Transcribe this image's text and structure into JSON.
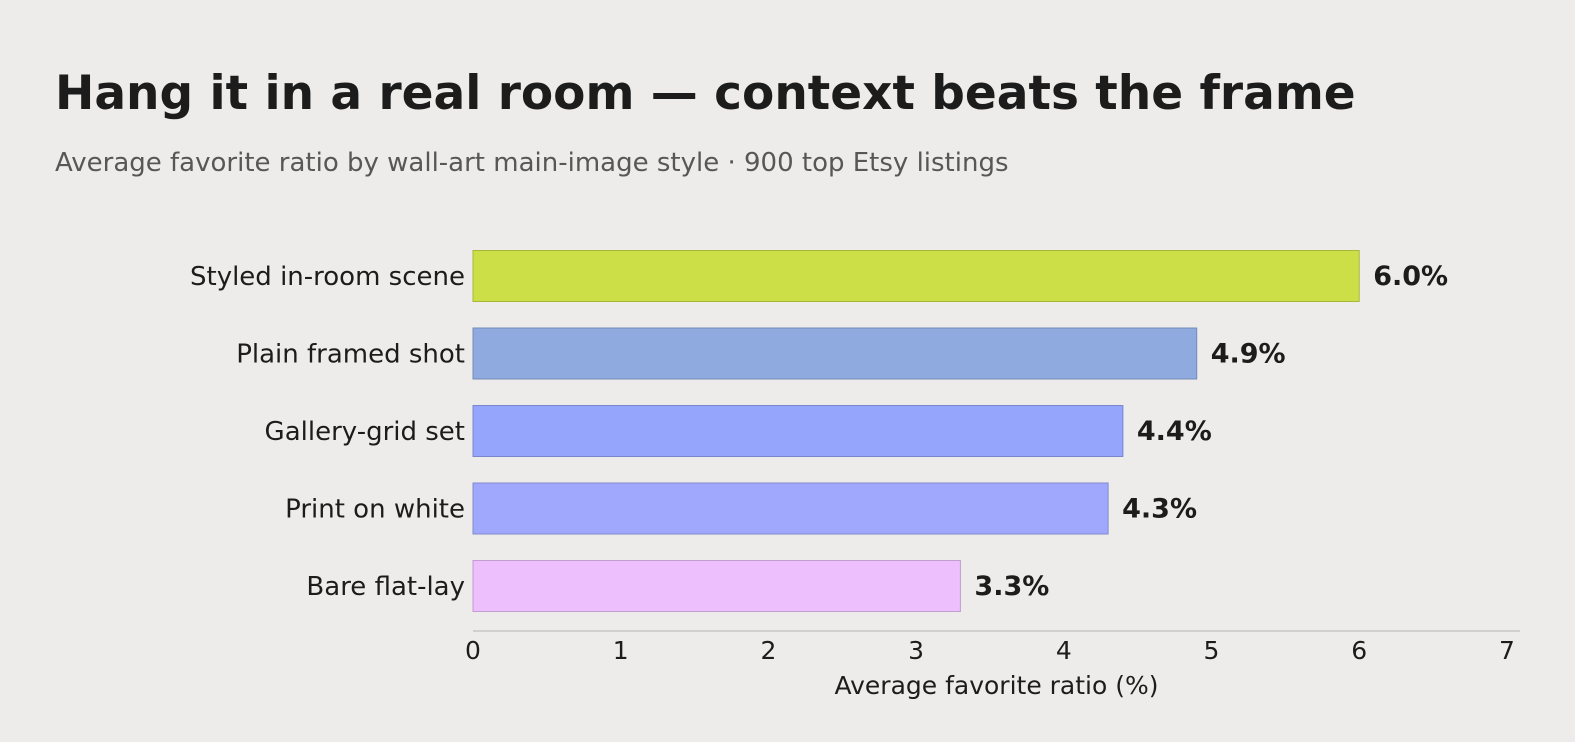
{
  "title": "Hang it in a real room — context beats the frame",
  "subtitle": "Average favorite ratio by wall-art main-image style · 900 top Etsy listings",
  "chart_data": {
    "type": "bar",
    "orientation": "horizontal",
    "categories": [
      "Styled in-room scene",
      "Plain framed shot",
      "Gallery-grid set",
      "Print on white",
      "Bare flat-lay"
    ],
    "values": [
      6.0,
      4.9,
      4.4,
      4.3,
      3.3
    ],
    "value_labels": [
      "6.0%",
      "4.9%",
      "4.4%",
      "4.3%",
      "3.3%"
    ],
    "colors": [
      "#cddf47",
      "#8faade",
      "#95a5fc",
      "#9fa8fd",
      "#edbffd"
    ],
    "xlabel": "Average favorite ratio (%)",
    "ylabel": "",
    "xlim": [
      0,
      7.1
    ],
    "xticks": [
      0,
      1,
      2,
      3,
      4,
      5,
      6,
      7
    ],
    "grid": false,
    "legend": "none"
  }
}
